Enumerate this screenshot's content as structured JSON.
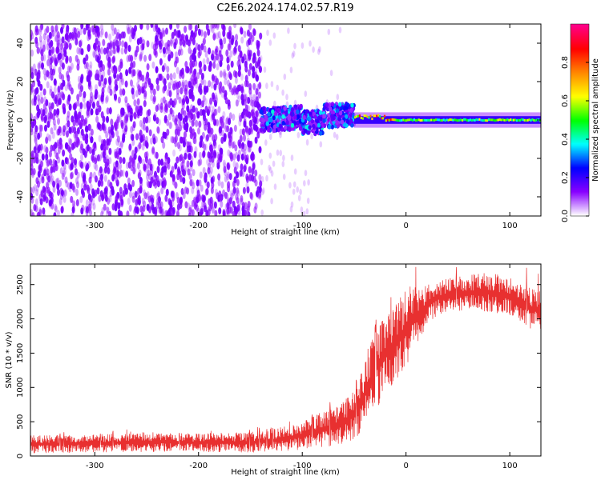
{
  "page_title": "C2E6.2024.174.02.57.R19",
  "chart_data": [
    {
      "type": "heatmap",
      "title": "C2E6.2024.174.02.57.R19",
      "xlabel": "Height of straight line (km)",
      "ylabel": "Frequency (Hz)",
      "xlim": [
        -362,
        130
      ],
      "ylim": [
        -50,
        50
      ],
      "xticks": [
        -300,
        -200,
        -100,
        0,
        100
      ],
      "yticks": [
        -40,
        -20,
        0,
        20,
        40
      ],
      "grid": false,
      "colorbar": {
        "label": "Normalized spectral amplitude",
        "range": [
          0.0,
          1.0
        ],
        "ticks": [
          0.0,
          0.2,
          0.4,
          0.6,
          0.8
        ],
        "colors": [
          "#ffffff",
          "#8800ff",
          "#0000ff",
          "#00ffff",
          "#00ff00",
          "#ffff00",
          "#ff8800",
          "#ff0000",
          "#ff0088"
        ]
      },
      "regions": [
        {
          "x_range": [
            -362,
            -140
          ],
          "freq_range": [
            -50,
            50
          ],
          "amplitude_range": [
            0.0,
            0.15
          ],
          "pattern": "noise"
        },
        {
          "x_range": [
            -140,
            -60
          ],
          "freq_range": [
            -50,
            50
          ],
          "amplitude_range": [
            0.0,
            0.05
          ],
          "pattern": "sparse noise"
        },
        {
          "x_range": [
            -140,
            -50
          ],
          "freq_range": [
            -10,
            8
          ],
          "amplitude_range": [
            0.1,
            0.4
          ],
          "pattern": "signal"
        },
        {
          "x_range": [
            -50,
            130
          ],
          "freq_range": [
            -2,
            2
          ],
          "amplitude_range": [
            0.3,
            0.95
          ],
          "pattern": "carrier line"
        }
      ]
    },
    {
      "type": "line",
      "xlabel": "Height of straight line (km)",
      "ylabel": "SNR (10 * v/v)",
      "xlim": [
        -362,
        130
      ],
      "ylim": [
        0,
        2800
      ],
      "xticks": [
        -300,
        -200,
        -100,
        0,
        100
      ],
      "yticks": [
        0,
        500,
        1000,
        1500,
        2000,
        2500
      ],
      "grid": false,
      "color": "#e83030",
      "envelope": {
        "x": [
          -362,
          -300,
          -250,
          -200,
          -150,
          -120,
          -100,
          -80,
          -60,
          -50,
          -40,
          -30,
          -20,
          -10,
          0,
          10,
          20,
          30,
          40,
          60,
          80,
          100,
          110,
          120,
          130
        ],
        "lower": [
          40,
          50,
          60,
          60,
          50,
          60,
          90,
          130,
          170,
          250,
          380,
          650,
          900,
          1100,
          1250,
          1600,
          1900,
          2050,
          2100,
          2120,
          2100,
          2050,
          1950,
          1850,
          1850
        ],
        "upper": [
          300,
          320,
          350,
          330,
          350,
          420,
          500,
          650,
          800,
          1000,
          1400,
          1900,
          2050,
          2200,
          2450,
          2480,
          2500,
          2550,
          2600,
          2650,
          2680,
          2600,
          2500,
          2450,
          2400
        ]
      }
    }
  ]
}
